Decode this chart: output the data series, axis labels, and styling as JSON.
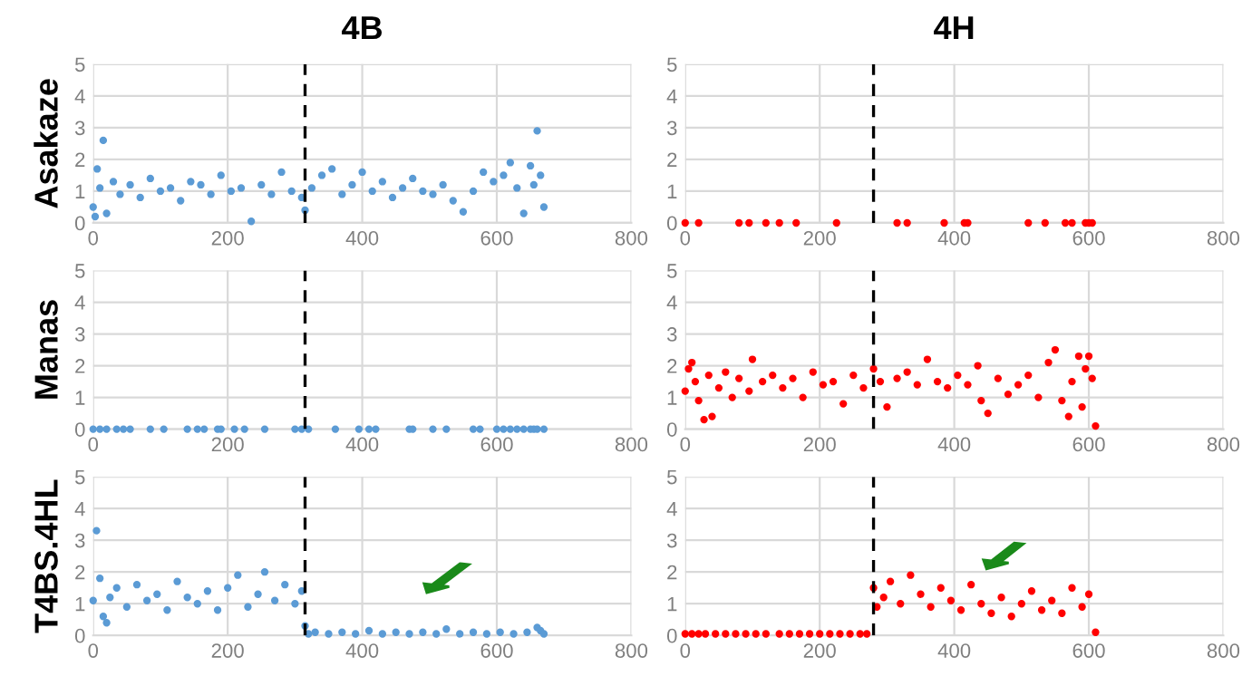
{
  "chart_data": [
    {
      "type": "scatter",
      "title": "4B",
      "ylabel": "Asakaze",
      "marker": "circle",
      "grid": true,
      "xlim": [
        0,
        800
      ],
      "ylim": [
        0,
        5
      ],
      "xticks": [
        0,
        200,
        400,
        600,
        800
      ],
      "yticks": [
        0,
        1,
        2,
        3,
        4,
        5
      ],
      "ref_lines": [
        {
          "axis": "x",
          "value": 315,
          "color": "#000000",
          "line_style": "dashed"
        }
      ],
      "series": [
        {
          "color": "#5b9bd5",
          "x": [
            0,
            3,
            6,
            10,
            15,
            20,
            30,
            40,
            55,
            70,
            85,
            100,
            115,
            130,
            145,
            160,
            175,
            190,
            205,
            220,
            235,
            250,
            265,
            280,
            295,
            310,
            315,
            325,
            340,
            355,
            370,
            385,
            400,
            415,
            430,
            445,
            460,
            475,
            490,
            505,
            520,
            535,
            550,
            565,
            580,
            595,
            610,
            620,
            630,
            640,
            650,
            655,
            660,
            665,
            670
          ],
          "values": [
            0.5,
            0.2,
            1.7,
            1.1,
            2.6,
            0.3,
            1.3,
            0.9,
            1.2,
            0.8,
            1.4,
            1.0,
            1.1,
            0.7,
            1.3,
            1.2,
            0.9,
            1.5,
            1.0,
            1.1,
            0.05,
            1.2,
            0.9,
            1.6,
            1.0,
            0.8,
            0.4,
            1.1,
            1.5,
            1.7,
            0.9,
            1.2,
            1.6,
            1.0,
            1.3,
            0.8,
            1.1,
            1.4,
            1.0,
            0.9,
            1.2,
            0.7,
            0.35,
            1.0,
            1.6,
            1.3,
            1.5,
            1.9,
            1.1,
            0.3,
            1.8,
            1.2,
            2.9,
            1.5,
            0.5
          ]
        }
      ]
    },
    {
      "type": "scatter",
      "title": "4H",
      "marker": "circle",
      "grid": true,
      "xlim": [
        0,
        800
      ],
      "ylim": [
        0,
        5
      ],
      "xticks": [
        0,
        200,
        400,
        600,
        800
      ],
      "yticks": [
        0,
        1,
        2,
        3,
        4,
        5
      ],
      "ref_lines": [
        {
          "axis": "x",
          "value": 280,
          "color": "#000000",
          "line_style": "dashed"
        }
      ],
      "series": [
        {
          "color": "#ff0000",
          "x": [
            0,
            20,
            80,
            95,
            120,
            140,
            165,
            225,
            315,
            330,
            385,
            415,
            420,
            510,
            535,
            565,
            575,
            595,
            600,
            605
          ],
          "values": [
            0,
            0,
            0,
            0,
            0,
            0,
            0,
            0,
            0,
            0,
            0,
            0,
            0,
            0,
            0,
            0,
            0,
            0,
            0,
            0
          ]
        }
      ]
    },
    {
      "type": "scatter",
      "ylabel": "Manas",
      "marker": "circle",
      "grid": true,
      "xlim": [
        0,
        800
      ],
      "ylim": [
        0,
        5
      ],
      "xticks": [
        0,
        200,
        400,
        600,
        800
      ],
      "yticks": [
        0,
        1,
        2,
        3,
        4,
        5
      ],
      "ref_lines": [
        {
          "axis": "x",
          "value": 315,
          "color": "#000000",
          "line_style": "dashed"
        }
      ],
      "series": [
        {
          "color": "#5b9bd5",
          "x": [
            0,
            10,
            20,
            35,
            45,
            55,
            85,
            105,
            140,
            155,
            165,
            185,
            190,
            210,
            225,
            255,
            300,
            310,
            320,
            360,
            395,
            410,
            420,
            470,
            475,
            505,
            525,
            565,
            575,
            600,
            610,
            620,
            630,
            640,
            650,
            655,
            660,
            670
          ],
          "values": [
            0,
            0,
            0,
            0,
            0,
            0,
            0,
            0,
            0,
            0,
            0,
            0,
            0,
            0,
            0,
            0,
            0,
            0,
            0,
            0,
            0,
            0,
            0,
            0,
            0,
            0,
            0,
            0,
            0,
            0,
            0,
            0,
            0,
            0,
            0,
            0,
            0,
            0
          ]
        }
      ]
    },
    {
      "type": "scatter",
      "marker": "circle",
      "grid": true,
      "xlim": [
        0,
        800
      ],
      "ylim": [
        0,
        5
      ],
      "xticks": [
        0,
        200,
        400,
        600,
        800
      ],
      "yticks": [
        0,
        1,
        2,
        3,
        4,
        5
      ],
      "ref_lines": [
        {
          "axis": "x",
          "value": 280,
          "color": "#000000",
          "line_style": "dashed"
        }
      ],
      "series": [
        {
          "color": "#ff0000",
          "x": [
            0,
            5,
            10,
            15,
            20,
            28,
            35,
            40,
            50,
            60,
            70,
            80,
            95,
            100,
            115,
            130,
            145,
            160,
            175,
            190,
            205,
            220,
            235,
            250,
            265,
            280,
            290,
            300,
            315,
            330,
            345,
            360,
            375,
            390,
            405,
            420,
            435,
            440,
            450,
            465,
            480,
            495,
            510,
            525,
            540,
            550,
            560,
            570,
            575,
            585,
            590,
            595,
            600,
            605,
            610
          ],
          "values": [
            1.2,
            1.9,
            2.1,
            1.5,
            0.9,
            0.3,
            1.7,
            0.4,
            1.3,
            1.8,
            1.0,
            1.6,
            1.2,
            2.2,
            1.5,
            1.7,
            1.3,
            1.6,
            1.0,
            1.8,
            1.4,
            1.5,
            0.8,
            1.7,
            1.3,
            1.9,
            1.5,
            0.7,
            1.6,
            1.8,
            1.4,
            2.2,
            1.5,
            1.3,
            1.7,
            1.4,
            2.0,
            0.9,
            0.5,
            1.6,
            1.1,
            1.4,
            1.7,
            1.0,
            2.1,
            2.5,
            0.9,
            0.4,
            1.5,
            2.3,
            0.7,
            1.9,
            2.3,
            1.6,
            0.1
          ]
        }
      ]
    },
    {
      "type": "scatter",
      "ylabel": "T4BS.4HL",
      "marker": "circle",
      "grid": true,
      "xlim": [
        0,
        800
      ],
      "ylim": [
        0,
        5
      ],
      "xticks": [
        0,
        200,
        400,
        600,
        800
      ],
      "yticks": [
        0,
        1,
        2,
        3,
        4,
        5
      ],
      "ref_lines": [
        {
          "axis": "x",
          "value": 315,
          "color": "#000000",
          "line_style": "dashed"
        }
      ],
      "series": [
        {
          "color": "#5b9bd5",
          "x": [
            0,
            5,
            10,
            15,
            20,
            25,
            35,
            50,
            65,
            80,
            95,
            110,
            125,
            140,
            155,
            170,
            185,
            200,
            215,
            230,
            245,
            255,
            270,
            285,
            300,
            310,
            315,
            320,
            330,
            350,
            370,
            390,
            410,
            430,
            450,
            470,
            490,
            510,
            525,
            545,
            565,
            585,
            605,
            625,
            645,
            660,
            665,
            670
          ],
          "values": [
            1.1,
            3.3,
            1.8,
            0.6,
            0.4,
            1.2,
            1.5,
            0.9,
            1.6,
            1.1,
            1.3,
            0.8,
            1.7,
            1.2,
            1.0,
            1.4,
            0.8,
            1.5,
            1.9,
            0.9,
            1.3,
            2.0,
            1.1,
            1.6,
            1.0,
            1.4,
            0.3,
            0.05,
            0.1,
            0.05,
            0.1,
            0.05,
            0.15,
            0.05,
            0.1,
            0.05,
            0.1,
            0.05,
            0.2,
            0.05,
            0.1,
            0.05,
            0.1,
            0.05,
            0.1,
            0.25,
            0.15,
            0.05
          ]
        }
      ]
    },
    {
      "type": "scatter",
      "marker": "circle",
      "grid": true,
      "xlim": [
        0,
        800
      ],
      "ylim": [
        0,
        5
      ],
      "xticks": [
        0,
        200,
        400,
        600,
        800
      ],
      "yticks": [
        0,
        1,
        2,
        3,
        4,
        5
      ],
      "ref_lines": [
        {
          "axis": "x",
          "value": 280,
          "color": "#000000",
          "line_style": "dashed"
        }
      ],
      "series": [
        {
          "color": "#ff0000",
          "x": [
            0,
            10,
            20,
            30,
            45,
            60,
            75,
            90,
            105,
            120,
            140,
            155,
            170,
            185,
            200,
            215,
            230,
            245,
            260,
            270,
            280,
            285,
            295,
            305,
            320,
            335,
            350,
            365,
            380,
            395,
            410,
            425,
            440,
            455,
            470,
            485,
            500,
            515,
            530,
            545,
            560,
            575,
            590,
            600,
            610
          ],
          "values": [
            0.05,
            0.05,
            0.05,
            0.05,
            0.05,
            0.05,
            0.05,
            0.05,
            0.05,
            0.05,
            0.05,
            0.05,
            0.05,
            0.05,
            0.05,
            0.05,
            0.05,
            0.05,
            0.05,
            0.05,
            1.5,
            0.9,
            1.2,
            1.7,
            1.0,
            1.9,
            1.3,
            0.9,
            1.5,
            1.1,
            0.8,
            1.6,
            1.0,
            0.7,
            1.2,
            0.6,
            1.0,
            1.4,
            0.8,
            1.1,
            0.7,
            1.5,
            0.9,
            1.3,
            0.1
          ]
        }
      ]
    }
  ]
}
